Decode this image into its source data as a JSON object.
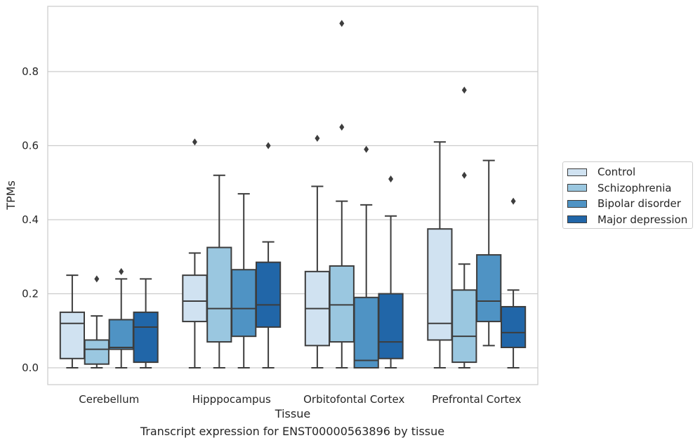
{
  "chart_data": {
    "type": "box",
    "title": "",
    "xlabel": "Tissue",
    "ylabel": "TPMs",
    "caption": "Transcript expression for ENST00000563896 by tissue",
    "ylim": [
      -0.045,
      0.975
    ],
    "yticks": [
      0.0,
      0.2,
      0.4,
      0.6,
      0.8
    ],
    "ytick_labels": [
      "0.0",
      "0.2",
      "0.4",
      "0.6",
      "0.8"
    ],
    "grid": true,
    "legend_position": "right",
    "categories": [
      "Cerebellum",
      "Hipppocampus",
      "Orbitofontal Cortex",
      "Prefrontal Cortex"
    ],
    "series": [
      {
        "name": "Control",
        "color": "#d0e2f1",
        "boxes": [
          {
            "whislo": 0.0,
            "q1": 0.025,
            "med": 0.12,
            "q3": 0.15,
            "whishi": 0.25,
            "fliers": []
          },
          {
            "whislo": 0.0,
            "q1": 0.125,
            "med": 0.18,
            "q3": 0.25,
            "whishi": 0.31,
            "fliers": [
              0.61
            ]
          },
          {
            "whislo": 0.0,
            "q1": 0.06,
            "med": 0.16,
            "q3": 0.26,
            "whishi": 0.49,
            "fliers": [
              0.62
            ]
          },
          {
            "whislo": 0.0,
            "q1": 0.075,
            "med": 0.12,
            "q3": 0.375,
            "whishi": 0.61,
            "fliers": []
          }
        ]
      },
      {
        "name": "Schizophrenia",
        "color": "#9ac7e0",
        "boxes": [
          {
            "whislo": 0.0,
            "q1": 0.01,
            "med": 0.05,
            "q3": 0.075,
            "whishi": 0.14,
            "fliers": [
              0.24
            ]
          },
          {
            "whislo": 0.0,
            "q1": 0.07,
            "med": 0.16,
            "q3": 0.325,
            "whishi": 0.52,
            "fliers": []
          },
          {
            "whislo": 0.0,
            "q1": 0.07,
            "med": 0.17,
            "q3": 0.275,
            "whishi": 0.45,
            "fliers": [
              0.65,
              0.93
            ]
          },
          {
            "whislo": 0.0,
            "q1": 0.015,
            "med": 0.085,
            "q3": 0.21,
            "whishi": 0.28,
            "fliers": [
              0.52,
              0.75
            ]
          }
        ]
      },
      {
        "name": "Bipolar disorder",
        "color": "#4f93c4",
        "boxes": [
          {
            "whislo": 0.0,
            "q1": 0.05,
            "med": 0.055,
            "q3": 0.13,
            "whishi": 0.24,
            "fliers": [
              0.26
            ]
          },
          {
            "whislo": 0.0,
            "q1": 0.085,
            "med": 0.16,
            "q3": 0.265,
            "whishi": 0.47,
            "fliers": []
          },
          {
            "whislo": 0.0,
            "q1": 0.0,
            "med": 0.02,
            "q3": 0.19,
            "whishi": 0.44,
            "fliers": [
              0.59
            ]
          },
          {
            "whislo": 0.06,
            "q1": 0.125,
            "med": 0.18,
            "q3": 0.305,
            "whishi": 0.56,
            "fliers": []
          }
        ]
      },
      {
        "name": "Major depression",
        "color": "#2166a8",
        "boxes": [
          {
            "whislo": 0.0,
            "q1": 0.015,
            "med": 0.11,
            "q3": 0.15,
            "whishi": 0.24,
            "fliers": []
          },
          {
            "whislo": 0.0,
            "q1": 0.11,
            "med": 0.17,
            "q3": 0.285,
            "whishi": 0.34,
            "fliers": [
              0.6
            ]
          },
          {
            "whislo": 0.0,
            "q1": 0.025,
            "med": 0.07,
            "q3": 0.2,
            "whishi": 0.41,
            "fliers": [
              0.51
            ]
          },
          {
            "whislo": 0.0,
            "q1": 0.055,
            "med": 0.095,
            "q3": 0.165,
            "whishi": 0.21,
            "fliers": [
              0.45
            ]
          }
        ]
      }
    ]
  }
}
